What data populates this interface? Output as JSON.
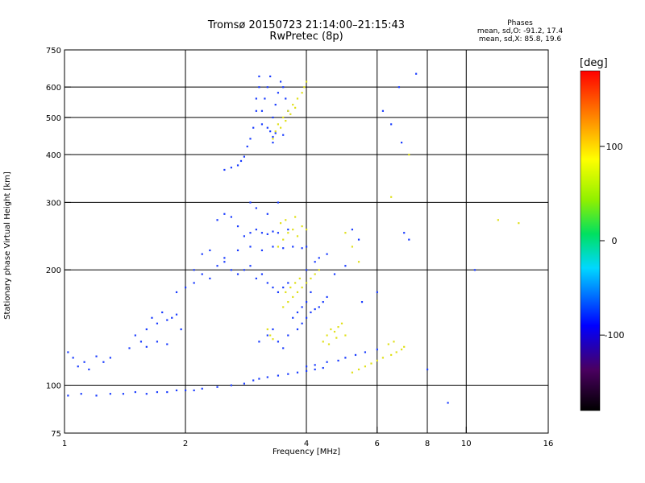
{
  "chart_data": {
    "type": "scatter",
    "title": "Tromsø 20150723 21:14:00–21:15:43",
    "subtitle": "RwPretec (8p)",
    "stats": {
      "heading": "Phases",
      "line1": "mean, sd,O: -91.2, 17.4",
      "line2": "mean, sd,X:  85.8, 19.6"
    },
    "xlabel": "Frequency [MHz]",
    "ylabel": "Stationary phase Virtual Height [km]",
    "x_scale": "log",
    "y_scale": "log",
    "xlim": [
      1,
      16
    ],
    "ylim": [
      75,
      750
    ],
    "x_ticks": [
      {
        "v": 1,
        "label": "1"
      },
      {
        "v": 2,
        "label": "2"
      },
      {
        "v": 4,
        "label": "4"
      },
      {
        "v": 6,
        "label": "6"
      },
      {
        "v": 8,
        "label": "8"
      },
      {
        "v": 10,
        "label": "10"
      },
      {
        "v": 16,
        "label": "16"
      }
    ],
    "x_grid": [
      2,
      4,
      6,
      8,
      10
    ],
    "y_ticks": [
      {
        "v": 75,
        "label": "75"
      },
      {
        "v": 100,
        "label": "100"
      },
      {
        "v": 200,
        "label": "200"
      },
      {
        "v": 300,
        "label": "300"
      },
      {
        "v": 400,
        "label": "400"
      },
      {
        "v": 500,
        "label": "500"
      },
      {
        "v": 600,
        "label": "600"
      },
      {
        "v": 750,
        "label": "750"
      }
    ],
    "y_grid": [
      100,
      200,
      300,
      400,
      500,
      600
    ],
    "grid": true,
    "colorbar": {
      "label": "[deg]",
      "range": [
        -180,
        180
      ],
      "ticks": [
        {
          "v": 100,
          "label": "100"
        },
        {
          "v": 0,
          "label": "0"
        },
        {
          "v": -100,
          "label": "-100"
        }
      ]
    },
    "series": [
      {
        "name": "O",
        "color": "#1a3cff",
        "points": [
          [
            1.02,
            94
          ],
          [
            1.1,
            95
          ],
          [
            1.2,
            94
          ],
          [
            1.3,
            95
          ],
          [
            1.4,
            95
          ],
          [
            1.5,
            96
          ],
          [
            1.6,
            95
          ],
          [
            1.7,
            96
          ],
          [
            1.8,
            96
          ],
          [
            1.9,
            97
          ],
          [
            2.0,
            97
          ],
          [
            2.1,
            97
          ],
          [
            2.2,
            98
          ],
          [
            2.4,
            99
          ],
          [
            2.6,
            100
          ],
          [
            2.8,
            101
          ],
          [
            2.95,
            103
          ],
          [
            3.05,
            104
          ],
          [
            3.2,
            105
          ],
          [
            3.4,
            106
          ],
          [
            3.6,
            107
          ],
          [
            3.8,
            108
          ],
          [
            4.0,
            109
          ],
          [
            4.2,
            110
          ],
          [
            4.4,
            111
          ],
          [
            1.02,
            122
          ],
          [
            1.05,
            118
          ],
          [
            1.08,
            112
          ],
          [
            1.12,
            115
          ],
          [
            1.15,
            110
          ],
          [
            1.2,
            119
          ],
          [
            1.25,
            115
          ],
          [
            1.3,
            118
          ],
          [
            1.45,
            125
          ],
          [
            1.5,
            135
          ],
          [
            1.55,
            130
          ],
          [
            1.6,
            140
          ],
          [
            1.65,
            150
          ],
          [
            1.7,
            145
          ],
          [
            1.75,
            155
          ],
          [
            1.8,
            148
          ],
          [
            1.85,
            150
          ],
          [
            1.9,
            153
          ],
          [
            1.95,
            140
          ],
          [
            1.6,
            126
          ],
          [
            1.7,
            130
          ],
          [
            1.8,
            128
          ],
          [
            1.9,
            175
          ],
          [
            2.0,
            180
          ],
          [
            2.1,
            185
          ],
          [
            2.1,
            200
          ],
          [
            2.2,
            195
          ],
          [
            2.3,
            190
          ],
          [
            2.4,
            205
          ],
          [
            2.5,
            210
          ],
          [
            2.6,
            200
          ],
          [
            2.7,
            195
          ],
          [
            2.8,
            200
          ],
          [
            2.9,
            205
          ],
          [
            3.0,
            190
          ],
          [
            3.1,
            195
          ],
          [
            3.2,
            185
          ],
          [
            3.3,
            180
          ],
          [
            3.4,
            175
          ],
          [
            3.5,
            180
          ],
          [
            3.6,
            185
          ],
          [
            2.2,
            220
          ],
          [
            2.3,
            225
          ],
          [
            2.5,
            215
          ],
          [
            2.7,
            225
          ],
          [
            2.9,
            230
          ],
          [
            3.1,
            225
          ],
          [
            3.3,
            230
          ],
          [
            3.5,
            228
          ],
          [
            3.7,
            230
          ],
          [
            3.9,
            228
          ],
          [
            4.0,
            230
          ],
          [
            2.8,
            245
          ],
          [
            2.9,
            250
          ],
          [
            3.0,
            255
          ],
          [
            3.1,
            250
          ],
          [
            3.2,
            248
          ],
          [
            3.3,
            252
          ],
          [
            3.4,
            250
          ],
          [
            3.6,
            255
          ],
          [
            2.4,
            270
          ],
          [
            2.5,
            280
          ],
          [
            2.6,
            275
          ],
          [
            2.7,
            260
          ],
          [
            2.9,
            300
          ],
          [
            3.0,
            290
          ],
          [
            3.2,
            280
          ],
          [
            3.4,
            300
          ],
          [
            2.5,
            365
          ],
          [
            2.6,
            370
          ],
          [
            2.7,
            375
          ],
          [
            2.75,
            385
          ],
          [
            2.8,
            395
          ],
          [
            2.85,
            420
          ],
          [
            2.9,
            440
          ],
          [
            2.95,
            470
          ],
          [
            3.0,
            520
          ],
          [
            3.0,
            560
          ],
          [
            3.05,
            600
          ],
          [
            3.05,
            640
          ],
          [
            3.1,
            480
          ],
          [
            3.1,
            520
          ],
          [
            3.15,
            560
          ],
          [
            3.2,
            600
          ],
          [
            3.25,
            640
          ],
          [
            3.3,
            500
          ],
          [
            3.35,
            540
          ],
          [
            3.4,
            580
          ],
          [
            3.45,
            620
          ],
          [
            3.5,
            600
          ],
          [
            3.55,
            560
          ],
          [
            3.6,
            520
          ],
          [
            3.5,
            450
          ],
          [
            3.3,
            430
          ],
          [
            3.2,
            470
          ],
          [
            3.25,
            460
          ],
          [
            3.3,
            445
          ],
          [
            3.35,
            455
          ],
          [
            3.05,
            130
          ],
          [
            3.2,
            135
          ],
          [
            3.3,
            140
          ],
          [
            3.4,
            130
          ],
          [
            3.5,
            125
          ],
          [
            3.6,
            135
          ],
          [
            3.8,
            140
          ],
          [
            3.9,
            145
          ],
          [
            4.0,
            150
          ],
          [
            4.1,
            155
          ],
          [
            4.2,
            158
          ],
          [
            4.3,
            160
          ],
          [
            4.4,
            165
          ],
          [
            4.5,
            170
          ],
          [
            3.7,
            150
          ],
          [
            3.8,
            155
          ],
          [
            3.9,
            160
          ],
          [
            4.0,
            165
          ],
          [
            4.1,
            175
          ],
          [
            4.0,
            112
          ],
          [
            4.2,
            113
          ],
          [
            4.5,
            115
          ],
          [
            4.8,
            116
          ],
          [
            5.0,
            118
          ],
          [
            5.3,
            120
          ],
          [
            5.6,
            122
          ],
          [
            6.0,
            124
          ],
          [
            4.0,
            200
          ],
          [
            4.2,
            210
          ],
          [
            4.3,
            215
          ],
          [
            4.5,
            220
          ],
          [
            4.7,
            195
          ],
          [
            5.0,
            205
          ],
          [
            5.2,
            255
          ],
          [
            5.4,
            240
          ],
          [
            6.2,
            520
          ],
          [
            6.5,
            480
          ],
          [
            6.8,
            600
          ],
          [
            7.5,
            650
          ],
          [
            6.9,
            430
          ],
          [
            7.0,
            250
          ],
          [
            7.2,
            240
          ],
          [
            8.0,
            110
          ],
          [
            9.0,
            90
          ],
          [
            10.5,
            200
          ],
          [
            6.0,
            175
          ],
          [
            5.5,
            165
          ]
        ]
      },
      {
        "name": "X",
        "color": "#e0e01a",
        "points": [
          [
            3.3,
            440
          ],
          [
            3.35,
            460
          ],
          [
            3.4,
            480
          ],
          [
            3.45,
            470
          ],
          [
            3.5,
            500
          ],
          [
            3.6,
            520
          ],
          [
            3.7,
            540
          ],
          [
            3.8,
            560
          ],
          [
            3.9,
            580
          ],
          [
            3.95,
            600
          ],
          [
            4.0,
            620
          ],
          [
            3.55,
            490
          ],
          [
            3.65,
            510
          ],
          [
            3.75,
            530
          ],
          [
            3.4,
            230
          ],
          [
            3.5,
            240
          ],
          [
            3.6,
            250
          ],
          [
            3.7,
            255
          ],
          [
            3.8,
            245
          ],
          [
            3.9,
            260
          ],
          [
            4.0,
            255
          ],
          [
            3.45,
            265
          ],
          [
            3.55,
            270
          ],
          [
            3.75,
            275
          ],
          [
            3.5,
            160
          ],
          [
            3.6,
            165
          ],
          [
            3.7,
            170
          ],
          [
            3.8,
            175
          ],
          [
            3.9,
            180
          ],
          [
            4.0,
            185
          ],
          [
            4.1,
            190
          ],
          [
            4.2,
            195
          ],
          [
            4.3,
            200
          ],
          [
            3.55,
            175
          ],
          [
            3.65,
            180
          ],
          [
            3.75,
            185
          ],
          [
            3.85,
            190
          ],
          [
            4.4,
            130
          ],
          [
            4.5,
            135
          ],
          [
            4.6,
            140
          ],
          [
            4.7,
            138
          ],
          [
            4.8,
            142
          ],
          [
            4.9,
            145
          ],
          [
            5.0,
            135
          ],
          [
            4.55,
            128
          ],
          [
            4.75,
            133
          ],
          [
            5.2,
            108
          ],
          [
            5.4,
            110
          ],
          [
            5.6,
            112
          ],
          [
            5.8,
            114
          ],
          [
            6.0,
            116
          ],
          [
            6.2,
            118
          ],
          [
            6.5,
            120
          ],
          [
            6.7,
            122
          ],
          [
            6.9,
            124
          ],
          [
            7.0,
            126
          ],
          [
            6.4,
            128
          ],
          [
            6.6,
            130
          ],
          [
            3.2,
            140
          ],
          [
            3.25,
            135
          ],
          [
            3.3,
            132
          ],
          [
            5.0,
            250
          ],
          [
            5.2,
            230
          ],
          [
            5.4,
            210
          ],
          [
            6.5,
            310
          ],
          [
            7.2,
            400
          ],
          [
            12.0,
            270
          ],
          [
            13.5,
            265
          ]
        ]
      }
    ]
  }
}
